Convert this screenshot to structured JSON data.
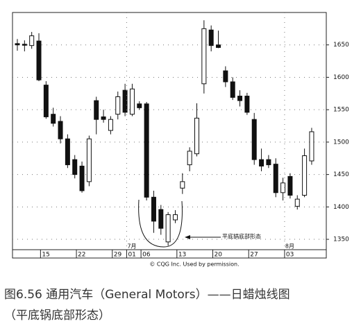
{
  "chart_data": {
    "type": "candlestick",
    "categories": [
      null,
      null,
      null,
      null,
      "15",
      null,
      null,
      null,
      null,
      "22",
      null,
      null,
      null,
      null,
      "29",
      null,
      "01",
      null,
      "06",
      null,
      null,
      null,
      null,
      "13",
      null,
      null,
      null,
      null,
      "20",
      null,
      null,
      null,
      null,
      "27",
      null,
      null,
      null,
      null,
      "03",
      null,
      null,
      null
    ],
    "open": [
      1652,
      1651,
      1649,
      1656,
      1588,
      1543,
      1532,
      1505,
      1473,
      1463,
      1439,
      1564,
      1539,
      1518,
      1543,
      1580,
      1543,
      1559,
      1559,
      1415,
      1396,
      1346,
      1380,
      1429,
      1465,
      1482,
      1590,
      1673,
      1650,
      1610,
      1593,
      1571,
      1571,
      1535,
      1473,
      1473,
      1466,
      1422,
      1447,
      1401,
      1418,
      1471
    ],
    "high": [
      1659,
      1657,
      1670,
      1668,
      1594,
      1553,
      1540,
      1512,
      1480,
      1470,
      1510,
      1570,
      1550,
      1540,
      1578,
      1590,
      1590,
      1563,
      1562,
      1425,
      1403,
      1392,
      1395,
      1452,
      1492,
      1560,
      1688,
      1680,
      1672,
      1617,
      1600,
      1580,
      1576,
      1545,
      1490,
      1480,
      1475,
      1445,
      1452,
      1418,
      1490,
      1522
    ],
    "low": [
      1641,
      1640,
      1644,
      1594,
      1536,
      1524,
      1498,
      1460,
      1444,
      1422,
      1432,
      1512,
      1530,
      1512,
      1535,
      1540,
      1540,
      1550,
      1410,
      1360,
      1357,
      1340,
      1375,
      1420,
      1455,
      1478,
      1575,
      1640,
      1645,
      1585,
      1565,
      1555,
      1542,
      1465,
      1455,
      1460,
      1415,
      1410,
      1413,
      1396,
      1415,
      1465
    ],
    "close": [
      1650,
      1650,
      1664,
      1596,
      1539,
      1529,
      1505,
      1465,
      1450,
      1425,
      1505,
      1535,
      1535,
      1535,
      1570,
      1546,
      1582,
      1553,
      1415,
      1378,
      1367,
      1388,
      1388,
      1439,
      1486,
      1537,
      1675,
      1649,
      1646,
      1593,
      1569,
      1564,
      1546,
      1473,
      1463,
      1465,
      1422,
      1437,
      1418,
      1412,
      1479,
      1516
    ],
    "ylim": [
      1334,
      1700
    ],
    "yticks": [
      1350,
      1400,
      1450,
      1500,
      1550,
      1600,
      1650
    ],
    "grid": true,
    "up_color": "#ffffff",
    "down_color": "#111111",
    "annotations": [
      "7月",
      "8月",
      "平底锅底部形态"
    ],
    "credit": "© CQG Inc. Used by permission.",
    "caption": [
      "图6.56 通用汽车（General Motors）——日蜡烛线图",
      "（平底锅底部形态）"
    ]
  }
}
